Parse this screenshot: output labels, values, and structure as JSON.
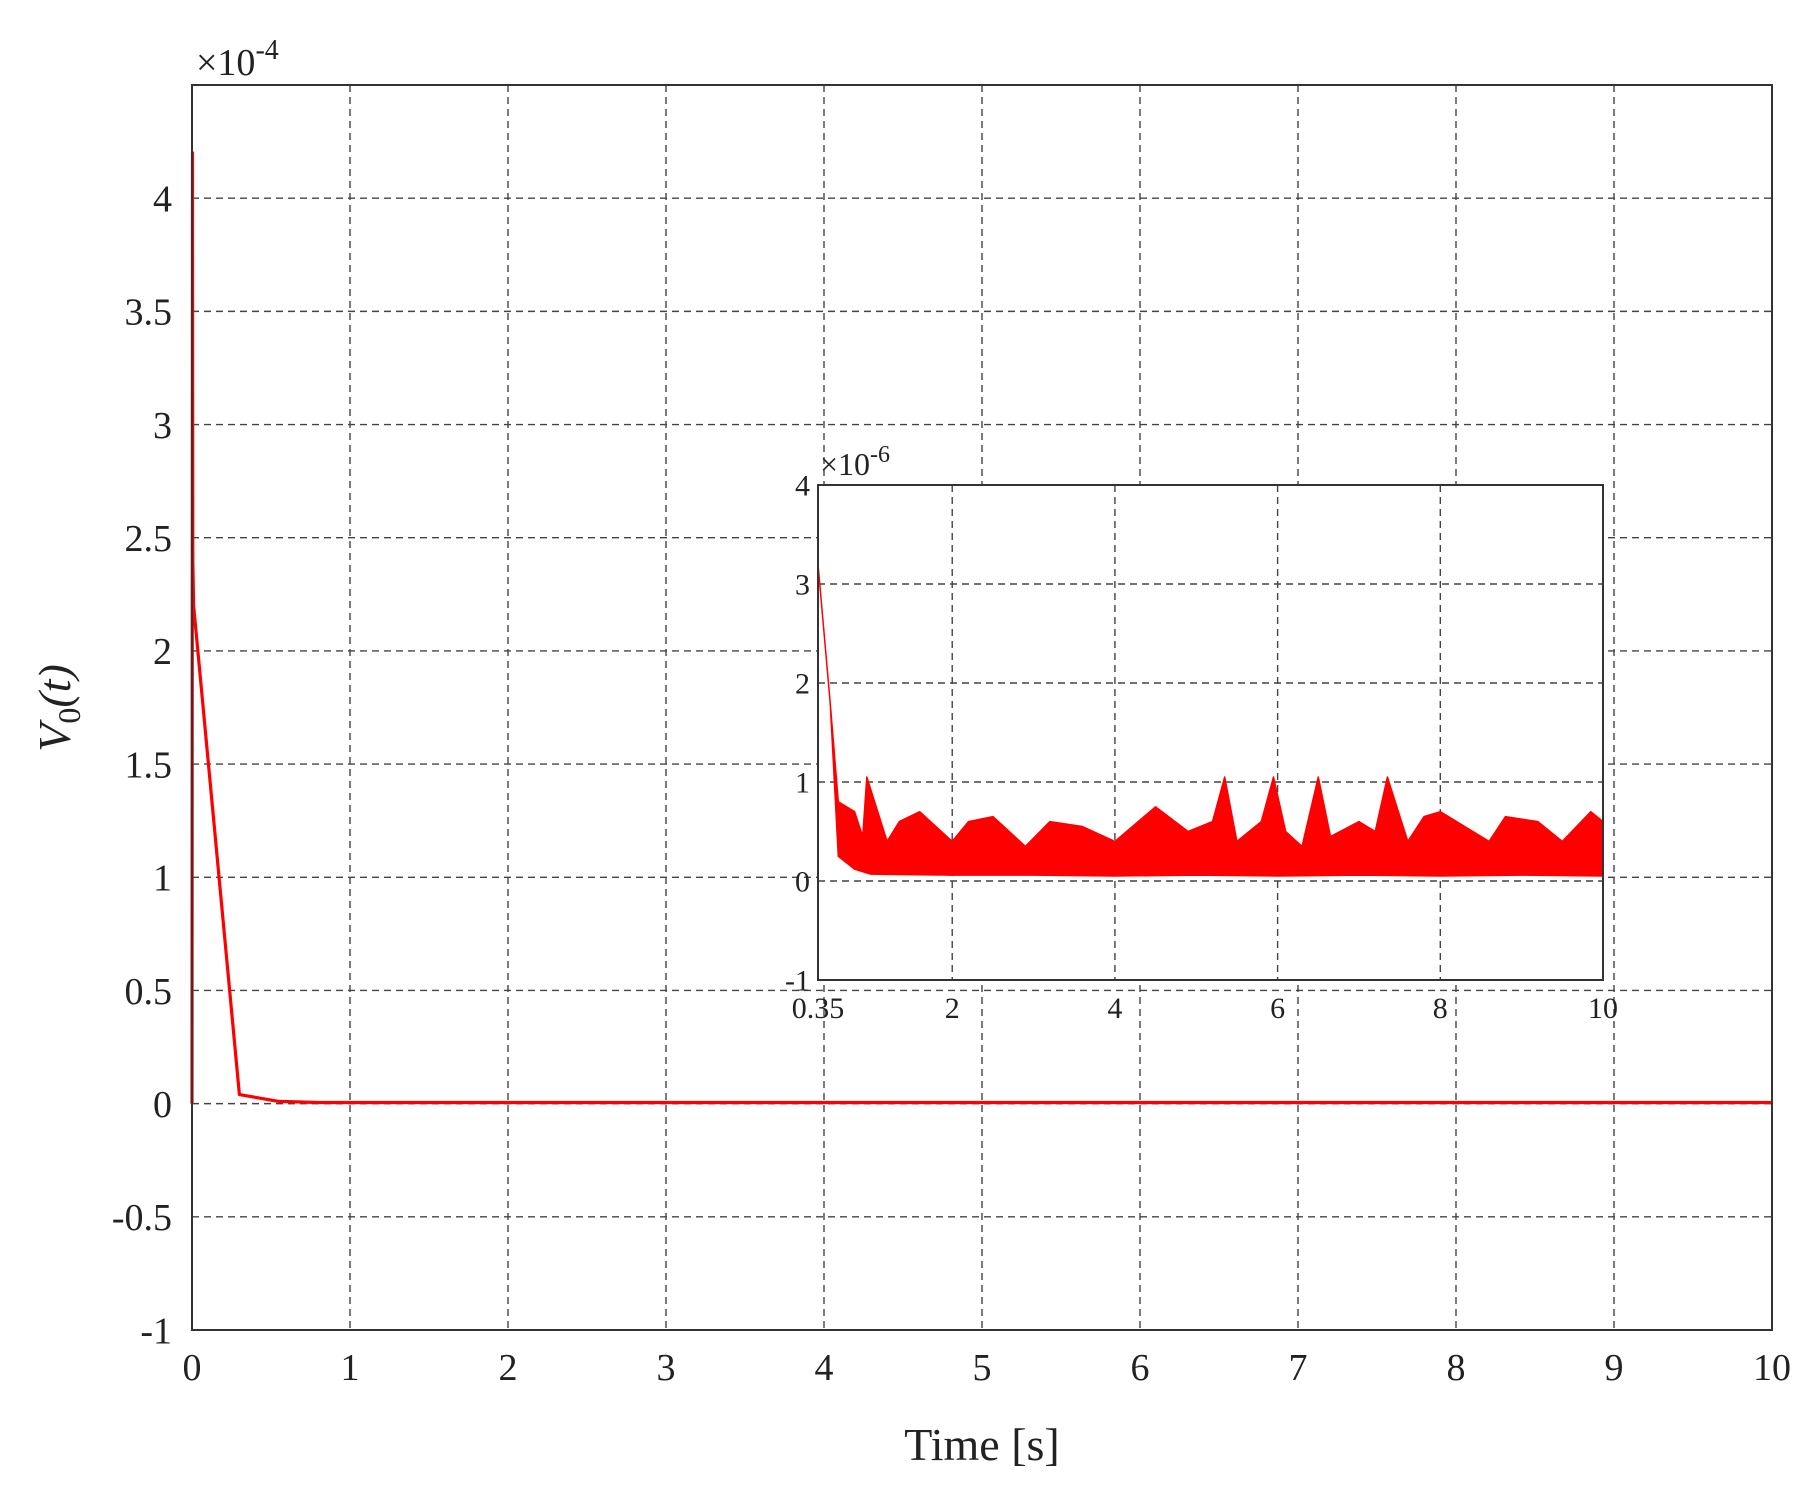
{
  "chart_data": [
    {
      "type": "line",
      "xlabel": "Time [s]",
      "ylabel_var": "V",
      "ylabel_sub": "0",
      "ylabel_arg": "(t)",
      "y_multiplier_base": "×10",
      "y_multiplier_exp": "-4",
      "xlim": [
        0,
        10
      ],
      "ylim": [
        -1,
        4.5
      ],
      "xticks": [
        0,
        1,
        2,
        3,
        4,
        5,
        6,
        7,
        8,
        9,
        10
      ],
      "xtick_labels": [
        "0",
        "1",
        "2",
        "3",
        "4",
        "5",
        "6",
        "7",
        "8",
        "9",
        "10"
      ],
      "yticks": [
        -1,
        -0.5,
        0,
        0.5,
        1,
        1.5,
        2,
        2.5,
        3,
        3.5,
        4
      ],
      "ytick_labels": [
        "-1",
        "-0.5",
        "0",
        "0.5",
        "1",
        "1.5",
        "2",
        "2.5",
        "3",
        "3.5",
        "4"
      ],
      "grid": true,
      "series": [
        {
          "color": "#ff0000",
          "x": [
            0,
            0.003,
            0.005,
            0.01,
            0.3,
            0.55,
            0.8,
            10
          ],
          "y": [
            0,
            4.2,
            2.4,
            2.2,
            0.04,
            0.01,
            0.005,
            0.005
          ]
        }
      ]
    },
    {
      "type": "area",
      "inset": true,
      "y_multiplier_base": "×10",
      "y_multiplier_exp": "-6",
      "xlim": [
        0.35,
        10
      ],
      "ylim": [
        -1,
        4
      ],
      "xticks": [
        0.35,
        2,
        4,
        6,
        8,
        10
      ],
      "xtick_labels": [
        "0.35",
        "2",
        "4",
        "6",
        "8",
        "10"
      ],
      "yticks": [
        -1,
        0,
        1,
        2,
        3,
        4
      ],
      "ytick_labels": [
        "-1",
        "0",
        "1",
        "2",
        "3",
        "4"
      ],
      "grid": true,
      "series": [
        {
          "color": "#ff0000",
          "upper": {
            "x": [
              0.35,
              0.5,
              0.6,
              0.8,
              0.9,
              0.95,
              1.2,
              1.35,
              1.6,
              2.0,
              2.2,
              2.5,
              2.9,
              3.2,
              3.6,
              4.0,
              4.5,
              4.9,
              5.2,
              5.35,
              5.5,
              5.8,
              5.95,
              6.1,
              6.3,
              6.5,
              6.65,
              7.0,
              7.2,
              7.35,
              7.6,
              7.8,
              8.0,
              8.3,
              8.6,
              8.8,
              9.2,
              9.5,
              9.85,
              10
            ],
            "y": [
              3.2,
              1.8,
              0.8,
              0.7,
              0.45,
              1.05,
              0.4,
              0.6,
              0.7,
              0.4,
              0.6,
              0.65,
              0.35,
              0.6,
              0.55,
              0.4,
              0.75,
              0.5,
              0.6,
              1.05,
              0.4,
              0.6,
              1.05,
              0.5,
              0.35,
              1.05,
              0.45,
              0.6,
              0.5,
              1.05,
              0.4,
              0.65,
              0.7,
              0.55,
              0.4,
              0.65,
              0.6,
              0.4,
              0.7,
              0.6
            ]
          },
          "lower": {
            "x": [
              0.35,
              0.5,
              0.6,
              0.8,
              1.0,
              2.0,
              3.0,
              4.0,
              5.0,
              6.0,
              7.0,
              8.0,
              9.0,
              10
            ],
            "y": [
              3.2,
              1.8,
              0.25,
              0.12,
              0.07,
              0.06,
              0.06,
              0.05,
              0.06,
              0.05,
              0.06,
              0.05,
              0.06,
              0.05
            ]
          }
        }
      ]
    }
  ]
}
